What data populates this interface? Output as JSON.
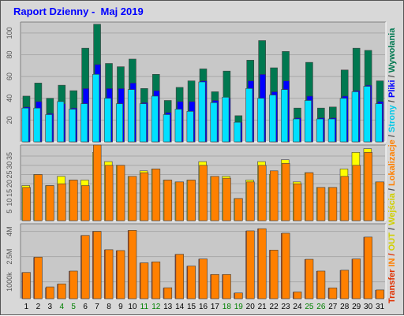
{
  "title": "Raport Dzienny -  Maj 2019",
  "legend": {
    "transfer": "Transfer",
    "in": "IN",
    "out": "OUT",
    "separator": " / ",
    "wejscia": "Wejścia",
    "lokalizacje": "Lokalizacje",
    "strony": "Strony",
    "pliki": "Pliki",
    "wywolania": "Wywołania"
  },
  "colors": {
    "background": "#d8d8d8",
    "panel": "#c8c8c8",
    "wywolania": "#007850",
    "pliki": "#0000ff",
    "strony": "#00e0ff",
    "wejscia": "#ffff00",
    "lokalizacje": "#ff8000",
    "transfer": "#ff4000",
    "in": "#ff8000",
    "out": "#ffff00",
    "weekend": "#008000",
    "weekday": "#000000"
  },
  "chart_data": [
    {
      "type": "bar",
      "panel": "top",
      "categories": [
        "1",
        "2",
        "3",
        "4",
        "5",
        "6",
        "7",
        "8",
        "9",
        "10",
        "11",
        "12",
        "13",
        "14",
        "15",
        "16",
        "17",
        "18",
        "19",
        "20",
        "21",
        "22",
        "23",
        "24",
        "25",
        "26",
        "27",
        "28",
        "29",
        "30",
        "31"
      ],
      "weekend_days": [
        "4",
        "5",
        "11",
        "12",
        "18",
        "19",
        "25",
        "26"
      ],
      "yticks": [
        20,
        40,
        60,
        80,
        100
      ],
      "ylim": [
        0,
        110
      ],
      "series": [
        {
          "name": "Wywołania",
          "values": [
            42,
            54,
            40,
            52,
            47,
            86,
            108,
            72,
            69,
            76,
            49,
            62,
            38,
            50,
            56,
            67,
            46,
            65,
            24,
            75,
            93,
            68,
            83,
            31,
            73,
            31,
            32,
            66,
            86,
            84,
            56
          ]
        },
        {
          "name": "Pliki",
          "values": [
            32,
            37,
            26,
            35,
            31,
            49,
            71,
            49,
            49,
            54,
            36,
            47,
            27,
            37,
            37,
            56,
            38,
            40,
            18,
            56,
            62,
            46,
            56,
            22,
            42,
            22,
            22,
            42,
            47,
            52,
            37
          ]
        },
        {
          "name": "Strony",
          "values": [
            31,
            31,
            25,
            37,
            30,
            35,
            62,
            40,
            35,
            48,
            35,
            42,
            25,
            30,
            28,
            55,
            36,
            41,
            18,
            49,
            40,
            43,
            48,
            21,
            38,
            21,
            21,
            40,
            46,
            51,
            35
          ]
        }
      ]
    },
    {
      "type": "bar",
      "panel": "middle",
      "categories": [
        "1",
        "2",
        "3",
        "4",
        "5",
        "6",
        "7",
        "8",
        "9",
        "10",
        "11",
        "12",
        "13",
        "14",
        "15",
        "16",
        "17",
        "18",
        "19",
        "20",
        "21",
        "22",
        "23",
        "24",
        "25",
        "26",
        "27",
        "28",
        "29",
        "30",
        "31"
      ],
      "yticks": [
        5,
        10,
        15,
        20,
        25,
        30,
        35
      ],
      "ylim": [
        0,
        41
      ],
      "series": [
        {
          "name": "Wejścia",
          "values": [
            19,
            25,
            19,
            24,
            22,
            22,
            37,
            32,
            30,
            24,
            27,
            28,
            22,
            21,
            22,
            32,
            24,
            24,
            12,
            22,
            32,
            25,
            33,
            21,
            26,
            18,
            18,
            28,
            37,
            39,
            21
          ]
        },
        {
          "name": "Lokalizacje",
          "values": [
            18,
            25,
            19,
            20,
            22,
            19,
            41,
            30,
            30,
            24,
            26,
            28,
            22,
            21,
            22,
            30,
            24,
            23,
            12,
            21,
            30,
            27,
            31,
            20,
            26,
            18,
            18,
            24,
            30,
            37,
            21
          ]
        }
      ]
    },
    {
      "type": "bar",
      "panel": "bottom",
      "categories": [
        "1",
        "2",
        "3",
        "4",
        "5",
        "6",
        "7",
        "8",
        "9",
        "10",
        "11",
        "12",
        "13",
        "14",
        "15",
        "16",
        "17",
        "18",
        "19",
        "20",
        "21",
        "22",
        "23",
        "24",
        "25",
        "26",
        "27",
        "28",
        "29",
        "30",
        "31"
      ],
      "yticks": [
        1000,
        2500,
        4000
      ],
      "ytick_labels": [
        "1000k",
        "2.5M",
        "4M"
      ],
      "ylim": [
        0,
        4450
      ],
      "series": [
        {
          "name": "IN",
          "values": [
            1550,
            2450,
            650,
            860,
            1630,
            3750,
            4000,
            2900,
            2850,
            4050,
            2120,
            2180,
            630,
            2630,
            1930,
            2350,
            1430,
            1430,
            330,
            4020,
            4150,
            2880,
            3880,
            380,
            2330,
            1630,
            630,
            1680,
            2350,
            3650,
            500
          ]
        },
        {
          "name": "OUT",
          "values": [
            1560,
            2470,
            700,
            880,
            1640,
            3760,
            4000,
            2910,
            2860,
            4060,
            2130,
            2190,
            650,
            2640,
            1940,
            2360,
            1440,
            1440,
            340,
            4030,
            4160,
            2890,
            3890,
            400,
            2340,
            1640,
            640,
            1690,
            2360,
            3660,
            520
          ]
        }
      ]
    }
  ]
}
